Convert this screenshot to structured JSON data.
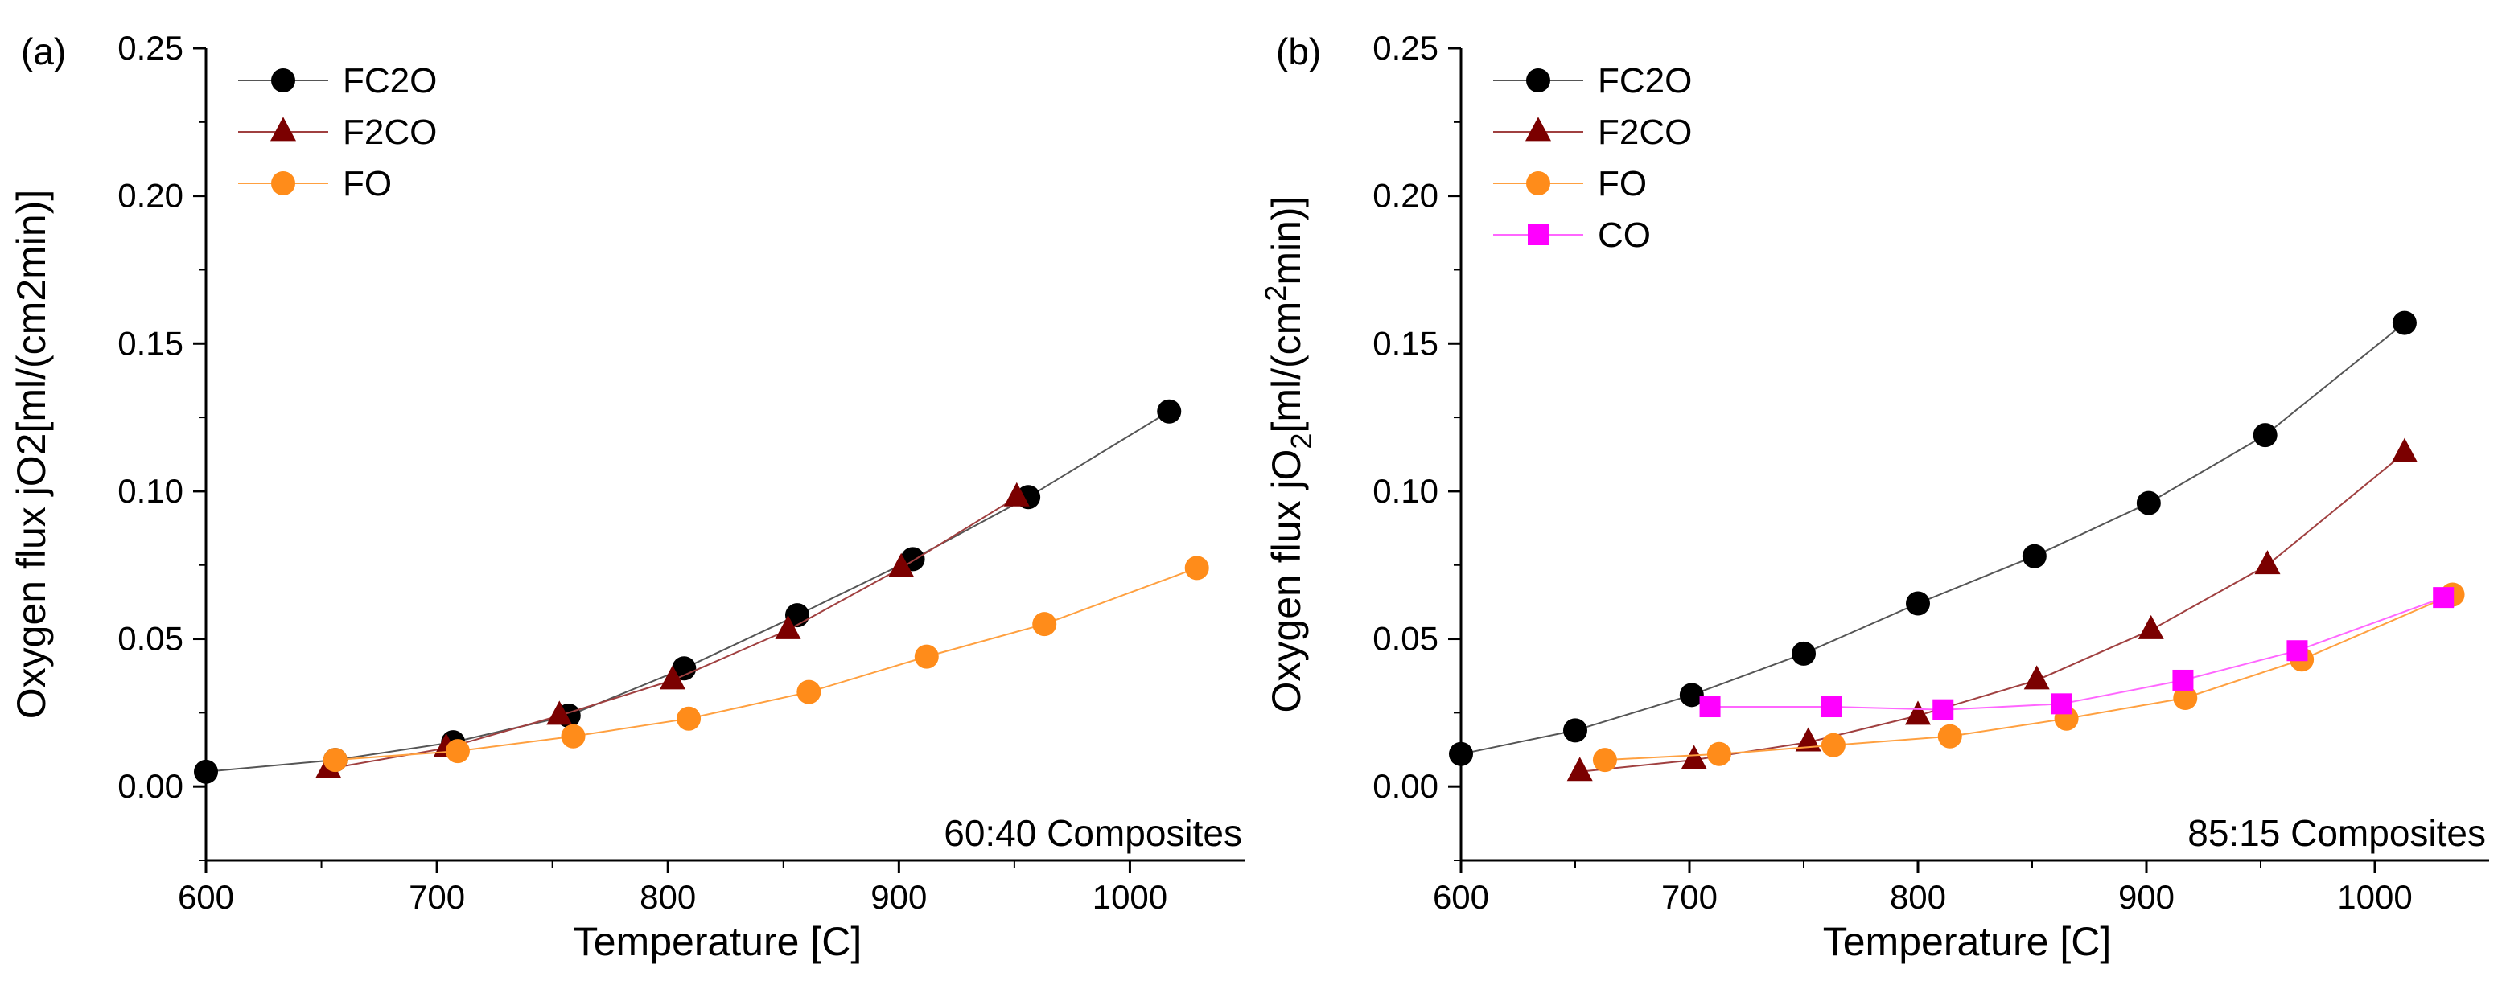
{
  "chart_data": [
    {
      "type": "line",
      "panel_label": "(a)",
      "annotation": "60:40 Composites",
      "xlabel": "Temperature [C]",
      "ylabel": "Oxygen flux jO2[ml/(cm2min)]",
      "ylabel_parts": {
        "pre": "Oxygen flux jO2[ml/(cm2min)]",
        "sub": "",
        "mid": "",
        "sup": "",
        "post": ""
      },
      "xlim": [
        600,
        1050
      ],
      "ylim": [
        -0.025,
        0.25
      ],
      "xticks": [
        600,
        700,
        800,
        900,
        1000
      ],
      "xtick_labels": [
        "600",
        "700",
        "800",
        "900",
        "1000"
      ],
      "yticks": [
        0,
        0.05,
        0.1,
        0.15,
        0.2,
        0.25
      ],
      "ytick_labels": [
        "0.00",
        "0.05",
        "0.10",
        "0.15",
        "0.20",
        "0.25"
      ],
      "grid": false,
      "legend_position": "top-left",
      "series": [
        {
          "name": "FC2O",
          "marker": "circle",
          "color": "#000000",
          "line_color": "#555555",
          "x": [
            600,
            656,
            707,
            757,
            807,
            856,
            906,
            956,
            1017
          ],
          "y": [
            0.005,
            0.009,
            0.015,
            0.024,
            0.04,
            0.058,
            0.077,
            0.098,
            0.127
          ]
        },
        {
          "name": "F2CO",
          "marker": "triangle",
          "color": "#7b0000",
          "line_color": "#a04040",
          "x": [
            653,
            704,
            753,
            802,
            852,
            901,
            951
          ],
          "y": [
            0.006,
            0.013,
            0.024,
            0.036,
            0.053,
            0.074,
            0.098
          ]
        },
        {
          "name": "FO",
          "marker": "circle",
          "color": "#ff8c1a",
          "line_color": "#ffa040",
          "x": [
            656,
            709,
            759,
            809,
            861,
            912,
            963,
            1029
          ],
          "y": [
            0.009,
            0.012,
            0.017,
            0.023,
            0.032,
            0.044,
            0.055,
            0.074
          ]
        }
      ]
    },
    {
      "type": "line",
      "panel_label": "(b)",
      "annotation": "85:15 Composites",
      "xlabel": "Temperature [C]",
      "ylabel": "Oxygen flux jO2[ml/(cm2min)]",
      "ylabel_parts": {
        "pre": "Oxygen flux jO",
        "sub": "2",
        "mid": "[ml/(cm",
        "sup": "2",
        "post": "min)]"
      },
      "xlim": [
        600,
        1050
      ],
      "ylim": [
        -0.025,
        0.25
      ],
      "xticks": [
        600,
        700,
        800,
        900,
        1000
      ],
      "xtick_labels": [
        "600",
        "700",
        "800",
        "900",
        "1000"
      ],
      "yticks": [
        0,
        0.05,
        0.1,
        0.15,
        0.2,
        0.25
      ],
      "ytick_labels": [
        "0.00",
        "0.05",
        "0.10",
        "0.15",
        "0.20",
        "0.25"
      ],
      "grid": false,
      "legend_position": "top-left",
      "series": [
        {
          "name": "FC2O",
          "marker": "circle",
          "color": "#000000",
          "line_color": "#555555",
          "x": [
            600,
            650,
            701,
            750,
            800,
            851,
            901,
            952,
            1013
          ],
          "y": [
            0.011,
            0.019,
            0.031,
            0.045,
            0.062,
            0.078,
            0.096,
            0.119,
            0.157
          ]
        },
        {
          "name": "F2CO",
          "marker": "triangle",
          "color": "#7b0000",
          "line_color": "#a04040",
          "x": [
            652,
            702,
            752,
            800,
            852,
            902,
            953,
            1013
          ],
          "y": [
            0.005,
            0.009,
            0.015,
            0.024,
            0.036,
            0.053,
            0.075,
            0.113
          ]
        },
        {
          "name": "FO",
          "marker": "circle",
          "color": "#ff8c1a",
          "line_color": "#ffa040",
          "x": [
            663,
            713,
            763,
            814,
            865,
            917,
            968,
            1034
          ],
          "y": [
            0.009,
            0.011,
            0.014,
            0.017,
            0.023,
            0.03,
            0.043,
            0.065
          ]
        },
        {
          "name": "CO",
          "marker": "square",
          "color": "#ff00ff",
          "line_color": "#ff66ff",
          "x": [
            709,
            762,
            811,
            863,
            916,
            966,
            1030
          ],
          "y": [
            0.027,
            0.027,
            0.026,
            0.028,
            0.036,
            0.046,
            0.064
          ]
        }
      ]
    }
  ]
}
